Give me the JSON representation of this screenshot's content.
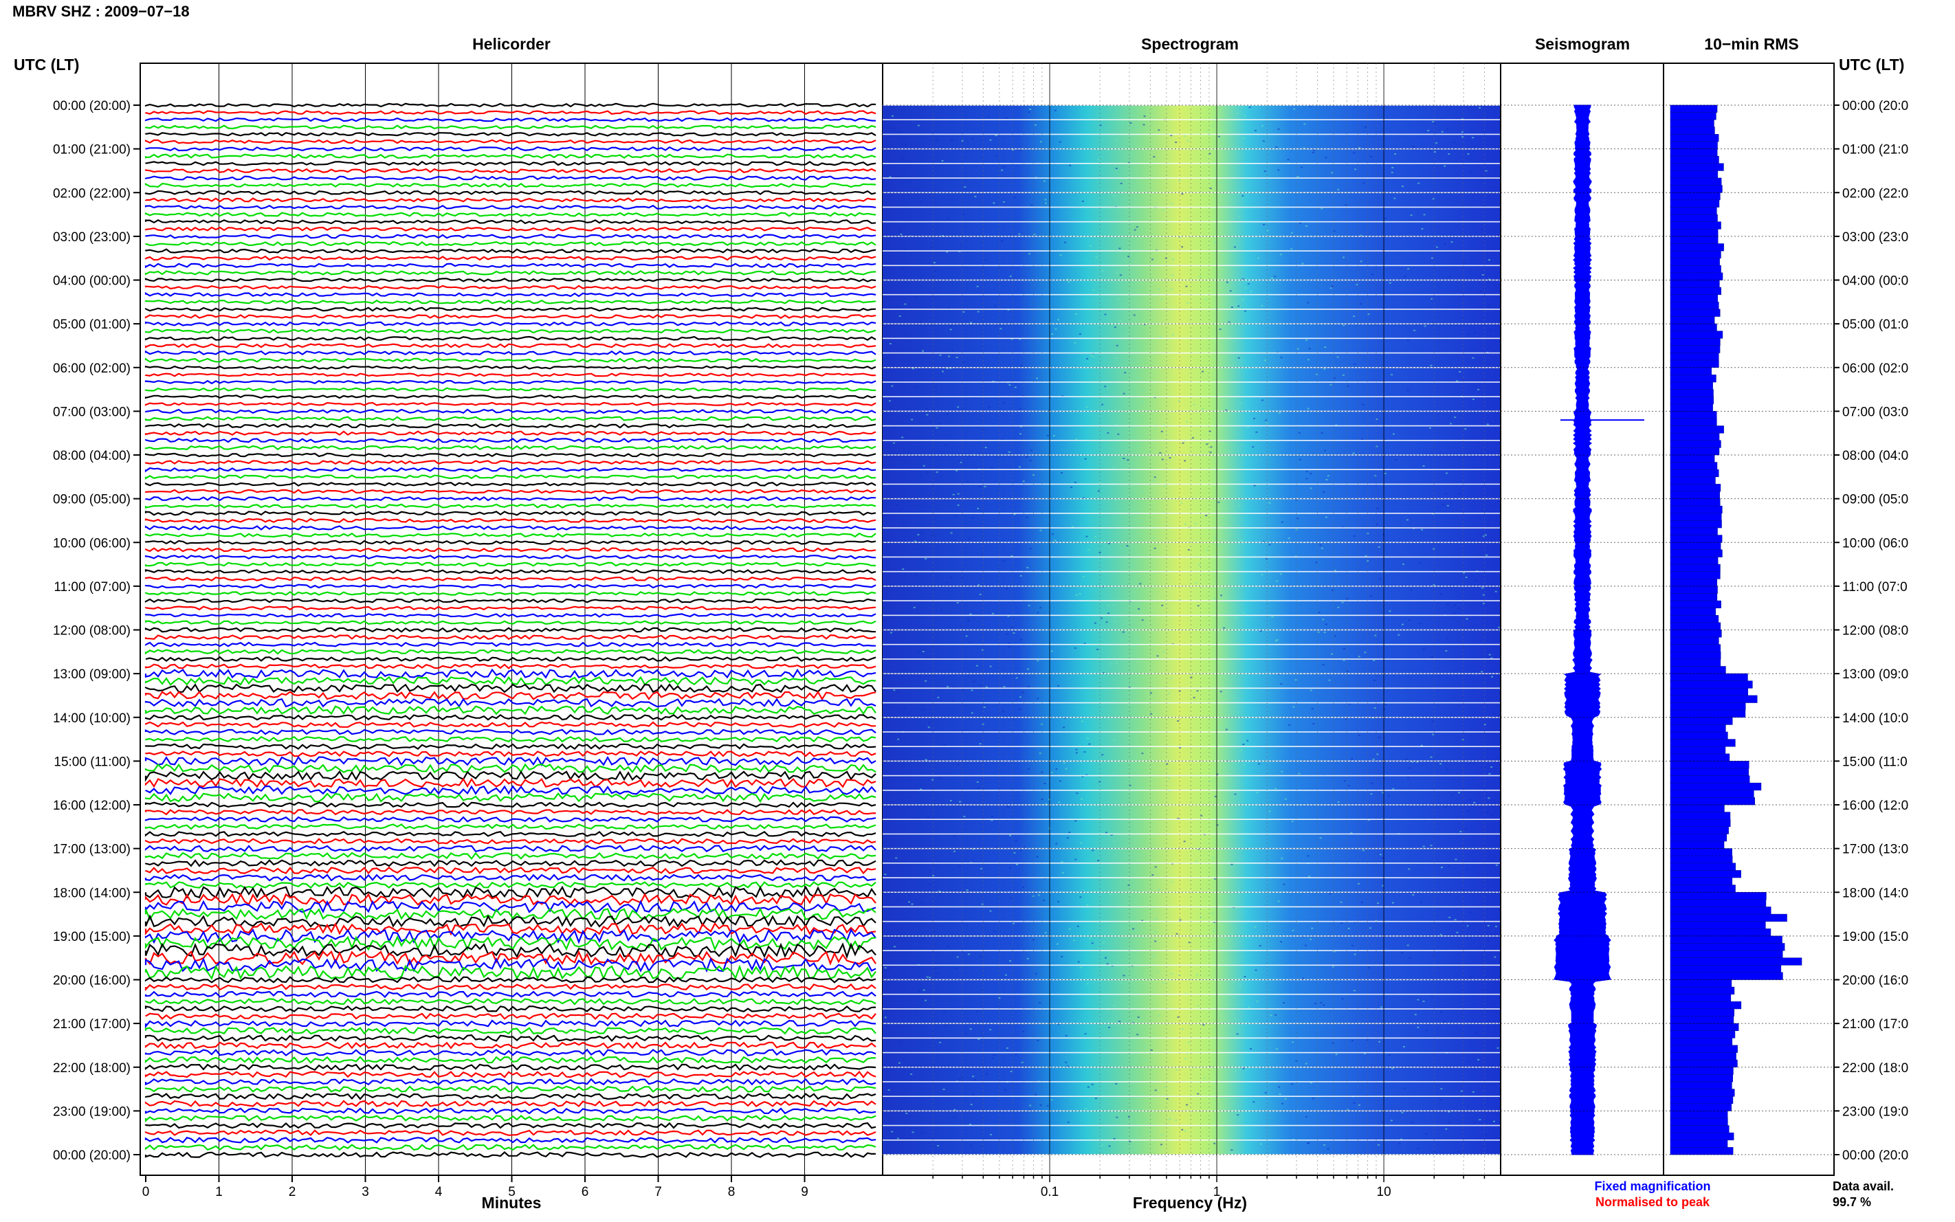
{
  "header": {
    "title": "MBRV SHZ : 2009−07−18"
  },
  "panels": {
    "helicorder": "Helicorder",
    "spectrogram": "Spectrogram",
    "seismogram": "Seismogram",
    "rms": "10−min RMS"
  },
  "axis_left_label": "UTC (LT)",
  "axis_right_label": "UTC (LT)",
  "chart_data": {
    "type": "heatmap",
    "title": "MBRV SHZ : 2009-07-18",
    "hour_labels_left": [
      "00:00 (20:00)",
      "01:00 (21:00)",
      "02:00 (22:00)",
      "03:00 (23:00)",
      "04:00 (00:00)",
      "05:00 (01:00)",
      "06:00 (02:00)",
      "07:00 (03:00)",
      "08:00 (04:00)",
      "09:00 (05:00)",
      "10:00 (06:00)",
      "11:00 (07:00)",
      "12:00 (08:00)",
      "13:00 (09:00)",
      "14:00 (10:00)",
      "15:00 (11:00)",
      "16:00 (12:00)",
      "17:00 (13:00)",
      "18:00 (14:00)",
      "19:00 (15:00)",
      "20:00 (16:00)",
      "21:00 (17:00)",
      "22:00 (18:00)",
      "23:00 (19:00)",
      "00:00 (20:00)"
    ],
    "hour_labels_right": [
      "00:00 (20:0",
      "01:00 (21:0",
      "02:00 (22:0",
      "03:00 (23:0",
      "04:00 (00:0",
      "05:00 (01:0",
      "06:00 (02:0",
      "07:00 (03:0",
      "08:00 (04:0",
      "09:00 (05:0",
      "10:00 (06:0",
      "11:00 (07:0",
      "12:00 (08:0",
      "13:00 (09:0",
      "14:00 (10:0",
      "15:00 (11:0",
      "16:00 (12:0",
      "17:00 (13:0",
      "18:00 (14:0",
      "19:00 (15:0",
      "20:00 (16:0",
      "21:00 (17:0",
      "22:00 (18:0",
      "23:00 (19:0",
      "00:00 (20:0"
    ],
    "helicorder": {
      "xlabel": "Minutes",
      "xticks": [
        "0",
        "1",
        "2",
        "3",
        "4",
        "5",
        "6",
        "7",
        "8",
        "9"
      ],
      "xlim": [
        0,
        10
      ],
      "trace_colors": [
        "#000000",
        "#ff0000",
        "#0000ff",
        "#00dd00"
      ]
    },
    "spectrogram": {
      "xlabel": "Frequency (Hz)",
      "xscale": "log",
      "xlim": [
        0.01,
        50
      ],
      "xticks": [
        "0.1",
        "1",
        "10"
      ],
      "colormap": "jet"
    },
    "seismogram": {
      "color": "#0000ff"
    },
    "rms": {
      "color": "#0000ff",
      "description_hours": [
        0,
        1,
        2,
        3,
        4,
        5,
        6,
        7,
        8,
        9,
        10,
        11,
        12,
        13,
        14,
        15,
        16,
        17,
        18,
        19,
        20,
        21,
        22,
        23
      ],
      "values": [
        0.36,
        0.38,
        0.37,
        0.38,
        0.36,
        0.37,
        0.34,
        0.38,
        0.36,
        0.38,
        0.37,
        0.36,
        0.4,
        0.6,
        0.45,
        0.62,
        0.44,
        0.5,
        0.75,
        0.85,
        0.48,
        0.5,
        0.48,
        0.46
      ],
      "xlim": [
        0,
        1.0
      ]
    }
  },
  "legend": {
    "fixed": "Fixed magnification",
    "normalised": "Normalised to peak",
    "fixed_color": "#0000ff",
    "normalised_color": "#ff0000"
  },
  "data_avail": {
    "label": "Data avail.",
    "value": "99.7 %"
  }
}
